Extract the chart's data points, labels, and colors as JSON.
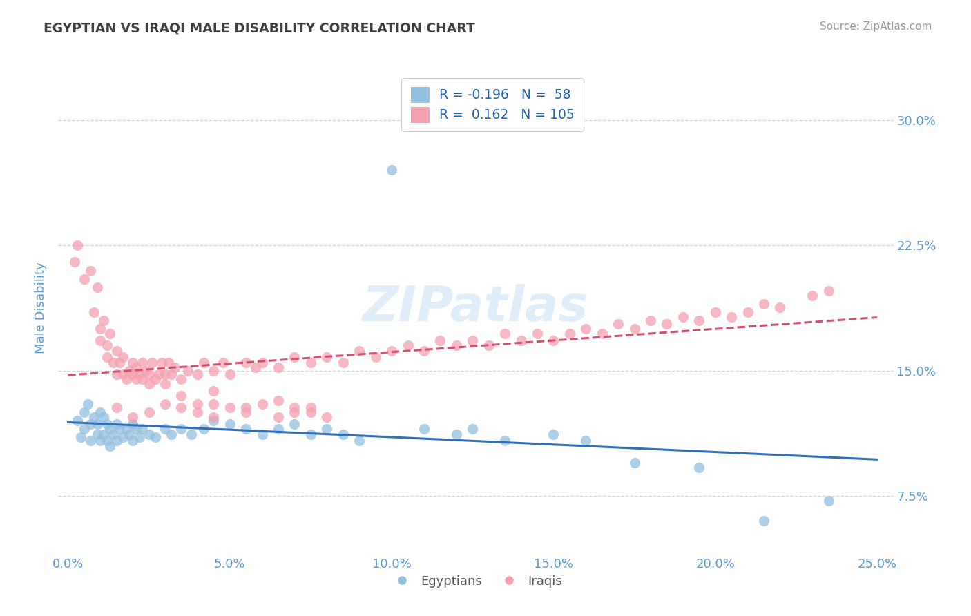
{
  "title": "EGYPTIAN VS IRAQI MALE DISABILITY CORRELATION CHART",
  "source_text": "Source: ZipAtlas.com",
  "ylabel": "Male Disability",
  "watermark": "ZIPatlas",
  "x_tick_labels": [
    "0.0%",
    "5.0%",
    "10.0%",
    "15.0%",
    "20.0%",
    "25.0%"
  ],
  "x_ticks_data": [
    0.0,
    5.0,
    10.0,
    15.0,
    20.0,
    25.0
  ],
  "y_ticks_data": [
    0.075,
    0.15,
    0.225,
    0.3
  ],
  "y_tick_labels": [
    "7.5%",
    "15.0%",
    "22.5%",
    "30.0%"
  ],
  "xlim": [
    -0.3,
    25.5
  ],
  "ylim": [
    0.04,
    0.335
  ],
  "blue_scatter_color": "#92c0e0",
  "pink_scatter_color": "#f4a0b0",
  "blue_line_color": "#3070b8",
  "pink_line_color": "#d85070",
  "grid_color": "#c8c8c8",
  "background_color": "#ffffff",
  "title_color": "#404040",
  "axis_label_color": "#5b9bd5",
  "tick_color": "#5b9bd5",
  "legend_label_egyptians": "Egyptians",
  "legend_label_iraqis": "Iraqis",
  "blue_R": -0.196,
  "pink_R": 0.162,
  "blue_N": 58,
  "pink_N": 105,
  "blue_points_x": [
    0.3,
    0.4,
    0.5,
    0.5,
    0.6,
    0.7,
    0.7,
    0.8,
    0.9,
    0.9,
    1.0,
    1.0,
    1.1,
    1.1,
    1.2,
    1.2,
    1.3,
    1.3,
    1.4,
    1.5,
    1.5,
    1.6,
    1.7,
    1.8,
    1.9,
    2.0,
    2.0,
    2.1,
    2.2,
    2.3,
    2.5,
    2.7,
    3.0,
    3.2,
    3.5,
    3.8,
    4.2,
    4.5,
    5.0,
    5.5,
    6.0,
    6.5,
    7.0,
    7.5,
    8.0,
    8.5,
    9.0,
    10.0,
    11.0,
    12.0,
    12.5,
    13.5,
    15.0,
    16.0,
    17.5,
    19.5,
    21.5,
    23.5
  ],
  "blue_points_y": [
    0.12,
    0.11,
    0.125,
    0.115,
    0.13,
    0.118,
    0.108,
    0.122,
    0.112,
    0.118,
    0.125,
    0.108,
    0.122,
    0.112,
    0.118,
    0.108,
    0.115,
    0.105,
    0.112,
    0.118,
    0.108,
    0.115,
    0.11,
    0.115,
    0.112,
    0.118,
    0.108,
    0.115,
    0.11,
    0.115,
    0.112,
    0.11,
    0.115,
    0.112,
    0.115,
    0.112,
    0.115,
    0.12,
    0.118,
    0.115,
    0.112,
    0.115,
    0.118,
    0.112,
    0.115,
    0.112,
    0.108,
    0.27,
    0.115,
    0.112,
    0.115,
    0.108,
    0.112,
    0.108,
    0.095,
    0.092,
    0.06,
    0.072
  ],
  "pink_points_x": [
    0.2,
    0.3,
    0.5,
    0.7,
    0.8,
    0.9,
    1.0,
    1.0,
    1.1,
    1.2,
    1.2,
    1.3,
    1.4,
    1.5,
    1.5,
    1.6,
    1.7,
    1.7,
    1.8,
    1.9,
    2.0,
    2.0,
    2.1,
    2.1,
    2.2,
    2.3,
    2.3,
    2.4,
    2.5,
    2.5,
    2.6,
    2.7,
    2.8,
    2.9,
    3.0,
    3.0,
    3.1,
    3.2,
    3.3,
    3.5,
    3.7,
    4.0,
    4.2,
    4.5,
    4.8,
    5.0,
    5.5,
    5.8,
    6.0,
    6.5,
    7.0,
    7.5,
    8.0,
    8.5,
    9.0,
    9.5,
    10.0,
    10.5,
    11.0,
    11.5,
    12.0,
    12.5,
    13.0,
    13.5,
    14.0,
    14.5,
    15.0,
    15.5,
    16.0,
    16.5,
    17.0,
    17.5,
    18.0,
    18.5,
    19.0,
    19.5,
    20.0,
    20.5,
    21.0,
    21.5,
    22.0,
    23.0,
    23.5,
    4.5,
    5.5,
    6.5,
    7.0,
    7.5,
    3.5,
    4.0,
    4.5,
    1.5,
    2.0,
    2.5,
    3.0,
    3.5,
    4.0,
    4.5,
    5.0,
    5.5,
    6.0,
    6.5,
    7.0,
    7.5,
    8.0
  ],
  "pink_points_y": [
    0.215,
    0.225,
    0.205,
    0.21,
    0.185,
    0.2,
    0.168,
    0.175,
    0.18,
    0.158,
    0.165,
    0.172,
    0.155,
    0.162,
    0.148,
    0.155,
    0.158,
    0.148,
    0.145,
    0.15,
    0.148,
    0.155,
    0.145,
    0.152,
    0.148,
    0.155,
    0.145,
    0.15,
    0.142,
    0.148,
    0.155,
    0.145,
    0.148,
    0.155,
    0.142,
    0.148,
    0.155,
    0.148,
    0.152,
    0.145,
    0.15,
    0.148,
    0.155,
    0.15,
    0.155,
    0.148,
    0.155,
    0.152,
    0.155,
    0.152,
    0.158,
    0.155,
    0.158,
    0.155,
    0.162,
    0.158,
    0.162,
    0.165,
    0.162,
    0.168,
    0.165,
    0.168,
    0.165,
    0.172,
    0.168,
    0.172,
    0.168,
    0.172,
    0.175,
    0.172,
    0.178,
    0.175,
    0.18,
    0.178,
    0.182,
    0.18,
    0.185,
    0.182,
    0.185,
    0.19,
    0.188,
    0.195,
    0.198,
    0.13,
    0.128,
    0.132,
    0.128,
    0.125,
    0.135,
    0.13,
    0.138,
    0.128,
    0.122,
    0.125,
    0.13,
    0.128,
    0.125,
    0.122,
    0.128,
    0.125,
    0.13,
    0.122,
    0.125,
    0.128,
    0.122
  ]
}
